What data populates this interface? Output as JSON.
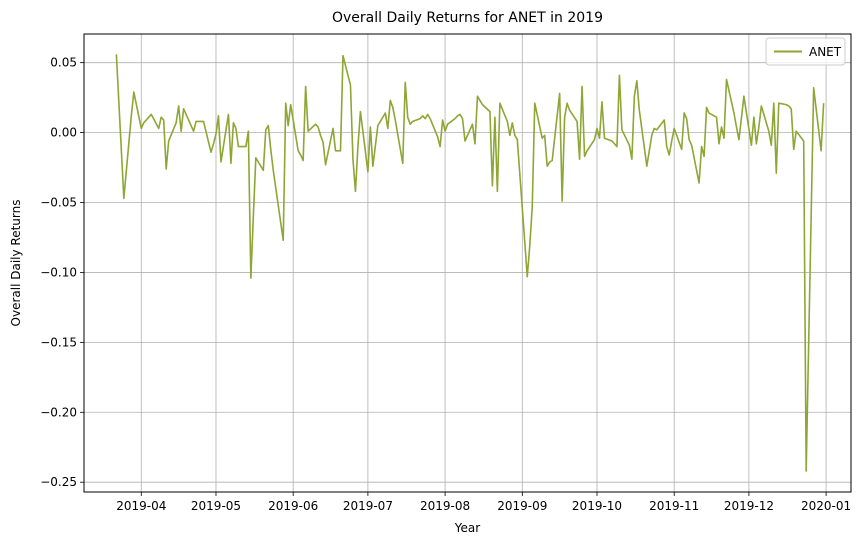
{
  "chart_data": {
    "type": "line",
    "title": "Overall Daily Returns for ANET in 2019",
    "xlabel": "Year",
    "ylabel": "Overall Daily Returns",
    "x_ticks": [
      "2019-04",
      "2019-05",
      "2019-06",
      "2019-07",
      "2019-08",
      "2019-09",
      "2019-10",
      "2019-11",
      "2019-12",
      "2020-01"
    ],
    "y_ticks": [
      "0.05",
      "0.00",
      "−0.05",
      "−0.10",
      "−0.15",
      "−0.20",
      "−0.25"
    ],
    "y_tick_values": [
      0.05,
      0.0,
      -0.05,
      -0.1,
      -0.15,
      -0.2,
      -0.25
    ],
    "xlim": [
      "2019-03-09",
      "2020-01-11"
    ],
    "ylim": [
      -0.257,
      0.0705
    ],
    "grid": true,
    "legend": {
      "position": "top-right",
      "entries": [
        "ANET"
      ]
    },
    "series": [
      {
        "name": "ANET",
        "color": "#8da634",
        "points": [
          [
            "2019-03-22",
            0.056
          ],
          [
            "2019-03-25",
            -0.047
          ],
          [
            "2019-03-28",
            0.012
          ],
          [
            "2019-03-29",
            0.029
          ],
          [
            "2019-04-01",
            0.003
          ],
          [
            "2019-04-02",
            0.007
          ],
          [
            "2019-04-03",
            0.009
          ],
          [
            "2019-04-04",
            0.011
          ],
          [
            "2019-04-05",
            0.013
          ],
          [
            "2019-04-08",
            0.003
          ],
          [
            "2019-04-09",
            0.011
          ],
          [
            "2019-04-10",
            0.009
          ],
          [
            "2019-04-11",
            -0.026
          ],
          [
            "2019-04-12",
            -0.006
          ],
          [
            "2019-04-15",
            0.007
          ],
          [
            "2019-04-16",
            0.019
          ],
          [
            "2019-04-17",
            0.001
          ],
          [
            "2019-04-18",
            0.017
          ],
          [
            "2019-04-22",
            0.001
          ],
          [
            "2019-04-23",
            0.008
          ],
          [
            "2019-04-24",
            0.008
          ],
          [
            "2019-04-25",
            0.008
          ],
          [
            "2019-04-26",
            0.008
          ],
          [
            "2019-04-29",
            -0.014
          ],
          [
            "2019-04-30",
            -0.008
          ],
          [
            "2019-05-01",
            -0.001
          ],
          [
            "2019-05-02",
            0.012
          ],
          [
            "2019-05-03",
            -0.021
          ],
          [
            "2019-05-06",
            0.013
          ],
          [
            "2019-05-07",
            -0.022
          ],
          [
            "2019-05-08",
            0.007
          ],
          [
            "2019-05-09",
            0.003
          ],
          [
            "2019-05-10",
            -0.01
          ],
          [
            "2019-05-13",
            -0.01
          ],
          [
            "2019-05-14",
            0.001
          ],
          [
            "2019-05-15",
            -0.104
          ],
          [
            "2019-05-16",
            -0.06
          ],
          [
            "2019-05-17",
            -0.018
          ],
          [
            "2019-05-20",
            -0.027
          ],
          [
            "2019-05-21",
            0.002
          ],
          [
            "2019-05-22",
            0.005
          ],
          [
            "2019-05-23",
            -0.012
          ],
          [
            "2019-05-24",
            -0.027
          ],
          [
            "2019-05-28",
            -0.077
          ],
          [
            "2019-05-29",
            0.021
          ],
          [
            "2019-05-30",
            0.005
          ],
          [
            "2019-05-31",
            0.02
          ],
          [
            "2019-06-03",
            -0.013
          ],
          [
            "2019-06-04",
            -0.016
          ],
          [
            "2019-06-05",
            -0.02
          ],
          [
            "2019-06-06",
            0.033
          ],
          [
            "2019-06-07",
            0.001
          ],
          [
            "2019-06-10",
            0.006
          ],
          [
            "2019-06-11",
            0.004
          ],
          [
            "2019-06-12",
            -0.002
          ],
          [
            "2019-06-13",
            -0.007
          ],
          [
            "2019-06-14",
            -0.023
          ],
          [
            "2019-06-17",
            0.003
          ],
          [
            "2019-06-18",
            -0.013
          ],
          [
            "2019-06-19",
            -0.013
          ],
          [
            "2019-06-20",
            -0.013
          ],
          [
            "2019-06-21",
            0.055
          ],
          [
            "2019-06-24",
            0.034
          ],
          [
            "2019-06-25",
            -0.019
          ],
          [
            "2019-06-26",
            -0.042
          ],
          [
            "2019-06-27",
            -0.01
          ],
          [
            "2019-06-28",
            0.015
          ],
          [
            "2019-07-01",
            -0.028
          ],
          [
            "2019-07-02",
            0.004
          ],
          [
            "2019-07-03",
            -0.024
          ],
          [
            "2019-07-05",
            0.005
          ],
          [
            "2019-07-08",
            0.014
          ],
          [
            "2019-07-09",
            0.003
          ],
          [
            "2019-07-10",
            0.023
          ],
          [
            "2019-07-11",
            0.018
          ],
          [
            "2019-07-12",
            0.009
          ],
          [
            "2019-07-15",
            -0.022
          ],
          [
            "2019-07-16",
            0.036
          ],
          [
            "2019-07-17",
            0.011
          ],
          [
            "2019-07-18",
            0.006
          ],
          [
            "2019-07-19",
            0.008
          ],
          [
            "2019-07-22",
            0.01
          ],
          [
            "2019-07-23",
            0.012
          ],
          [
            "2019-07-24",
            0.01
          ],
          [
            "2019-07-25",
            0.013
          ],
          [
            "2019-07-26",
            0.01
          ],
          [
            "2019-07-29",
            -0.003
          ],
          [
            "2019-07-30",
            -0.01
          ],
          [
            "2019-07-31",
            0.009
          ],
          [
            "2019-08-01",
            0.001
          ],
          [
            "2019-08-02",
            0.006
          ],
          [
            "2019-08-05",
            0.01
          ],
          [
            "2019-08-06",
            0.012
          ],
          [
            "2019-08-07",
            0.013
          ],
          [
            "2019-08-08",
            0.01
          ],
          [
            "2019-08-09",
            -0.006
          ],
          [
            "2019-08-12",
            0.006
          ],
          [
            "2019-08-13",
            -0.008
          ],
          [
            "2019-08-14",
            0.026
          ],
          [
            "2019-08-15",
            0.023
          ],
          [
            "2019-08-16",
            0.02
          ],
          [
            "2019-08-19",
            0.015
          ],
          [
            "2019-08-20",
            -0.038
          ],
          [
            "2019-08-21",
            0.011
          ],
          [
            "2019-08-22",
            -0.042
          ],
          [
            "2019-08-23",
            0.021
          ],
          [
            "2019-08-26",
            0.008
          ],
          [
            "2019-08-27",
            -0.002
          ],
          [
            "2019-08-28",
            0.007
          ],
          [
            "2019-08-29",
            -0.002
          ],
          [
            "2019-08-30",
            -0.005
          ],
          [
            "2019-09-03",
            -0.103
          ],
          [
            "2019-09-04",
            -0.081
          ],
          [
            "2019-09-05",
            -0.053
          ],
          [
            "2019-09-06",
            0.021
          ],
          [
            "2019-09-09",
            -0.004
          ],
          [
            "2019-09-10",
            -0.002
          ],
          [
            "2019-09-11",
            -0.024
          ],
          [
            "2019-09-12",
            -0.021
          ],
          [
            "2019-09-13",
            -0.02
          ],
          [
            "2019-09-16",
            0.028
          ],
          [
            "2019-09-17",
            -0.049
          ],
          [
            "2019-09-18",
            0.011
          ],
          [
            "2019-09-19",
            0.021
          ],
          [
            "2019-09-20",
            0.016
          ],
          [
            "2019-09-23",
            0.008
          ],
          [
            "2019-09-24",
            -0.019
          ],
          [
            "2019-09-25",
            0.033
          ],
          [
            "2019-09-26",
            -0.017
          ],
          [
            "2019-09-27",
            -0.013
          ],
          [
            "2019-09-30",
            -0.005
          ],
          [
            "2019-10-01",
            0.003
          ],
          [
            "2019-10-02",
            -0.004
          ],
          [
            "2019-10-03",
            0.022
          ],
          [
            "2019-10-04",
            -0.004
          ],
          [
            "2019-10-07",
            -0.006
          ],
          [
            "2019-10-08",
            -0.008
          ],
          [
            "2019-10-09",
            -0.01
          ],
          [
            "2019-10-10",
            0.041
          ],
          [
            "2019-10-11",
            0.002
          ],
          [
            "2019-10-14",
            -0.009
          ],
          [
            "2019-10-15",
            -0.019
          ],
          [
            "2019-10-16",
            0.026
          ],
          [
            "2019-10-17",
            0.037
          ],
          [
            "2019-10-18",
            0.016
          ],
          [
            "2019-10-21",
            -0.024
          ],
          [
            "2019-10-22",
            -0.013
          ],
          [
            "2019-10-23",
            -0.002
          ],
          [
            "2019-10-24",
            0.003
          ],
          [
            "2019-10-25",
            0.002
          ],
          [
            "2019-10-28",
            0.009
          ],
          [
            "2019-10-29",
            -0.01
          ],
          [
            "2019-10-30",
            -0.016
          ],
          [
            "2019-10-31",
            -0.006
          ],
          [
            "2019-11-01",
            0.003
          ],
          [
            "2019-11-04",
            -0.012
          ],
          [
            "2019-11-05",
            0.014
          ],
          [
            "2019-11-06",
            0.01
          ],
          [
            "2019-11-07",
            -0.005
          ],
          [
            "2019-11-08",
            -0.009
          ],
          [
            "2019-11-11",
            -0.036
          ],
          [
            "2019-11-12",
            -0.01
          ],
          [
            "2019-11-13",
            -0.017
          ],
          [
            "2019-11-14",
            0.018
          ],
          [
            "2019-11-15",
            0.014
          ],
          [
            "2019-11-18",
            0.011
          ],
          [
            "2019-11-19",
            -0.008
          ],
          [
            "2019-11-20",
            0.004
          ],
          [
            "2019-11-21",
            -0.004
          ],
          [
            "2019-11-22",
            0.038
          ],
          [
            "2019-11-25",
            0.014
          ],
          [
            "2019-11-26",
            0.004
          ],
          [
            "2019-11-27",
            -0.005
          ],
          [
            "2019-11-29",
            0.026
          ],
          [
            "2019-12-02",
            -0.009
          ],
          [
            "2019-12-03",
            0.011
          ],
          [
            "2019-12-04",
            -0.008
          ],
          [
            "2019-12-05",
            0.004
          ],
          [
            "2019-12-06",
            0.019
          ],
          [
            "2019-12-09",
            0.001
          ],
          [
            "2019-12-10",
            -0.009
          ],
          [
            "2019-12-11",
            0.021
          ],
          [
            "2019-12-12",
            -0.029
          ],
          [
            "2019-12-13",
            0.021
          ],
          [
            "2019-12-16",
            0.02
          ],
          [
            "2019-12-17",
            0.019
          ],
          [
            "2019-12-18",
            0.017
          ],
          [
            "2019-12-19",
            -0.012
          ],
          [
            "2019-12-20",
            0.001
          ],
          [
            "2019-12-23",
            -0.006
          ],
          [
            "2019-12-24",
            -0.242
          ],
          [
            "2019-12-27",
            0.032
          ],
          [
            "2019-12-30",
            -0.013
          ],
          [
            "2019-12-31",
            0.021
          ]
        ]
      }
    ]
  }
}
